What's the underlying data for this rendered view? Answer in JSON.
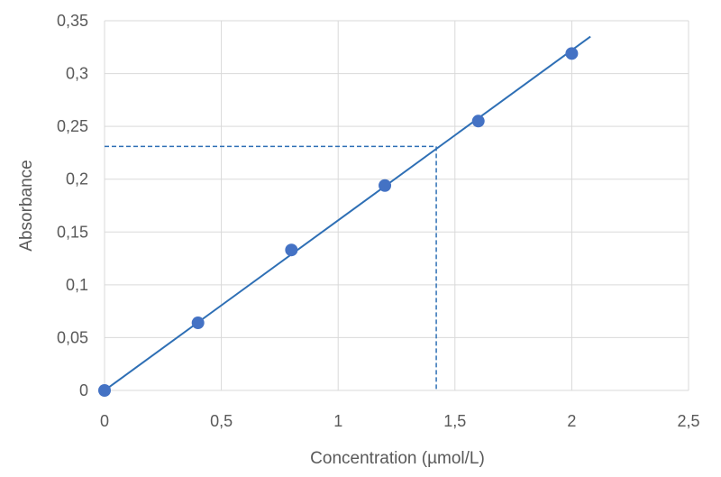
{
  "chart_data": {
    "type": "scatter",
    "xlabel": "Concentration (µmol/L)",
    "ylabel": "Absorbance",
    "xlim": [
      0,
      2.5
    ],
    "ylim": [
      0,
      0.35
    ],
    "x_ticks": [
      0,
      0.5,
      1,
      1.5,
      2,
      2.5
    ],
    "y_ticks": [
      0,
      0.05,
      0.1,
      0.15,
      0.2,
      0.25,
      0.3,
      0.35
    ],
    "x_tick_labels": [
      "0",
      "0,5",
      "1",
      "1,5",
      "2",
      "2,5"
    ],
    "y_tick_labels": [
      "0",
      "0,05",
      "0,1",
      "0,15",
      "0,2",
      "0,25",
      "0,3",
      "0,35"
    ],
    "grid": true,
    "series": [
      {
        "x": [
          0,
          0.4,
          0.8,
          1.2,
          1.6,
          2.0
        ],
        "y": [
          0,
          0.064,
          0.133,
          0.194,
          0.255,
          0.319
        ],
        "color": "#4472c4"
      }
    ],
    "trendline": {
      "x": [
        0,
        2.08
      ],
      "y": [
        0,
        0.335
      ],
      "color": "#2e6fb5"
    },
    "reference": {
      "x": 1.42,
      "y": 0.231,
      "style": "dashed",
      "color": "#2e6fb5"
    }
  }
}
